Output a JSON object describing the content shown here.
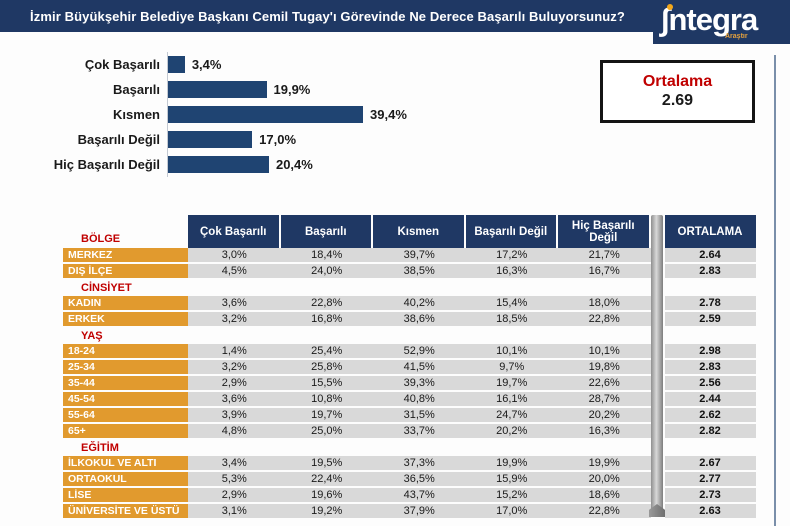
{
  "header": {
    "title": "İzmir Büyükşehir Belediye Başkanı Cemil Tugay'ı Görevinde Ne Derece Başarılı Buluyorsunuz?",
    "logo": {
      "text": "∫ntegra",
      "sub": "Araştır"
    }
  },
  "summary": {
    "label": "Ortalama",
    "value": "2.69"
  },
  "colors": {
    "navy": "#1F3864",
    "bar": "#1F4472",
    "orange": "#E19A2E",
    "red": "#C00000",
    "row_gray": "#D9D9D9"
  },
  "chart_data": [
    {
      "type": "bar",
      "orientation": "horizontal",
      "title": "İzmir Büyükşehir Belediye Başkanı Cemil Tugay'ı Görevinde Ne Derece Başarılı Buluyorsunuz?",
      "categories": [
        "Çok Başarılı",
        "Başarılı",
        "Kısmen",
        "Başarılı Değil",
        "Hiç Başarılı Değil"
      ],
      "values": [
        3.4,
        19.9,
        39.4,
        17.0,
        20.4
      ],
      "value_labels": [
        "3,4%",
        "19,9%",
        "39,4%",
        "17,0%",
        "20,4%"
      ],
      "xlim": [
        0,
        45
      ],
      "grid": false,
      "legend": false,
      "overall_average": 2.69
    },
    {
      "type": "table",
      "first_section": "BÖLGE",
      "columns": [
        "Çok Başarılı",
        "Başarılı",
        "Kısmen",
        "Başarılı Değil",
        "Hiç Başarılı Değil"
      ],
      "avg_column": "ORTALAMA",
      "rows": [
        {
          "type": "data",
          "label": "MERKEZ",
          "values": [
            "3,0%",
            "18,4%",
            "39,7%",
            "17,2%",
            "21,7%"
          ],
          "avg": "2.64"
        },
        {
          "type": "data",
          "label": "DIŞ İLÇE",
          "values": [
            "4,5%",
            "24,0%",
            "38,5%",
            "16,3%",
            "16,7%"
          ],
          "avg": "2.83"
        },
        {
          "type": "section",
          "label": "CİNSİYET"
        },
        {
          "type": "data",
          "label": "KADIN",
          "values": [
            "3,6%",
            "22,8%",
            "40,2%",
            "15,4%",
            "18,0%"
          ],
          "avg": "2.78"
        },
        {
          "type": "data",
          "label": "ERKEK",
          "values": [
            "3,2%",
            "16,8%",
            "38,6%",
            "18,5%",
            "22,8%"
          ],
          "avg": "2.59"
        },
        {
          "type": "section",
          "label": "YAŞ"
        },
        {
          "type": "data",
          "label": "18-24",
          "values": [
            "1,4%",
            "25,4%",
            "52,9%",
            "10,1%",
            "10,1%"
          ],
          "avg": "2.98"
        },
        {
          "type": "data",
          "label": "25-34",
          "values": [
            "3,2%",
            "25,8%",
            "41,5%",
            "9,7%",
            "19,8%"
          ],
          "avg": "2.83"
        },
        {
          "type": "data",
          "label": "35-44",
          "values": [
            "2,9%",
            "15,5%",
            "39,3%",
            "19,7%",
            "22,6%"
          ],
          "avg": "2.56"
        },
        {
          "type": "data",
          "label": "45-54",
          "values": [
            "3,6%",
            "10,8%",
            "40,8%",
            "16,1%",
            "28,7%"
          ],
          "avg": "2.44"
        },
        {
          "type": "data",
          "label": "55-64",
          "values": [
            "3,9%",
            "19,7%",
            "31,5%",
            "24,7%",
            "20,2%"
          ],
          "avg": "2.62"
        },
        {
          "type": "data",
          "label": "65+",
          "values": [
            "4,8%",
            "25,0%",
            "33,7%",
            "20,2%",
            "16,3%"
          ],
          "avg": "2.82"
        },
        {
          "type": "section",
          "label": "EĞİTİM"
        },
        {
          "type": "data",
          "label": "İLKOKUL VE ALTI",
          "values": [
            "3,4%",
            "19,5%",
            "37,3%",
            "19,9%",
            "19,9%"
          ],
          "avg": "2.67"
        },
        {
          "type": "data",
          "label": "ORTAOKUL",
          "values": [
            "5,3%",
            "22,4%",
            "36,5%",
            "15,9%",
            "20,0%"
          ],
          "avg": "2.77"
        },
        {
          "type": "data",
          "label": "LİSE",
          "values": [
            "2,9%",
            "19,6%",
            "43,7%",
            "15,2%",
            "18,6%"
          ],
          "avg": "2.73"
        },
        {
          "type": "data",
          "label": "ÜNİVERSİTE VE ÜSTÜ",
          "values": [
            "3,1%",
            "19,2%",
            "37,9%",
            "17,0%",
            "22,8%"
          ],
          "avg": "2.63"
        }
      ]
    }
  ]
}
